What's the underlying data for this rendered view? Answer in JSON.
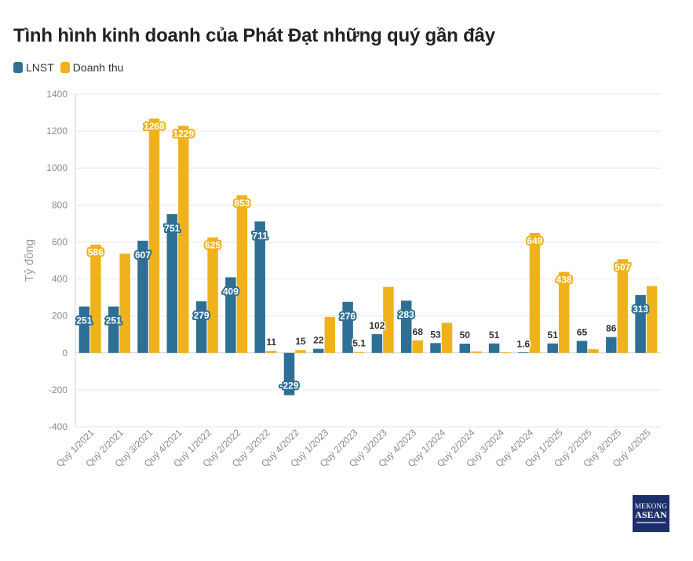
{
  "chart_data": {
    "type": "bar",
    "title": "Tình hình kinh doanh của Phát Đạt những quý gần đây",
    "ylabel": "Tỷ đồng",
    "ylim": [
      -400,
      1400
    ],
    "yticks": [
      -400,
      -200,
      0,
      200,
      400,
      600,
      800,
      1000,
      1200,
      1400
    ],
    "grid": true,
    "legend_position": "top-left",
    "categories": [
      "Quý 1/2021",
      "Quý 2/2021",
      "Quý 3/2021",
      "Quý 4/2021",
      "Quý 1/2022",
      "Quý 2/2022",
      "Quý 3/2022",
      "Quý 4/2022",
      "Quý 1/2023",
      "Quý 2/2023",
      "Quý 3/2023",
      "Quý 4/2023",
      "Quý 1/2024",
      "Quý 2/2024",
      "Quý 3/2024",
      "Quý 4/2024",
      "Quý 1/2025",
      "Quý 2/2025",
      "Quý 3/2025",
      "Quý 4/2025"
    ],
    "series": [
      {
        "name": "LNST",
        "color": "#2e6f96",
        "values": [
          251,
          251,
          607,
          751,
          279,
          409,
          711,
          -229,
          22,
          276,
          102,
          283,
          53,
          50,
          51,
          1.6,
          51,
          65,
          86,
          313
        ],
        "labels": [
          "251",
          "251",
          "607",
          "751",
          "279",
          "409",
          "711",
          "-229",
          "22",
          "276",
          "102",
          "283",
          "53",
          "50",
          "51",
          "1.6",
          "51",
          "65",
          "86",
          "313"
        ]
      },
      {
        "name": "Doanh thu",
        "color": "#f0b21c",
        "values": [
          586,
          537,
          1268,
          1229,
          625,
          853,
          11,
          15,
          195,
          5.1,
          357,
          68,
          163,
          8,
          3,
          649,
          438,
          20,
          507,
          362
        ],
        "labels": [
          "586",
          "",
          "1268",
          "1229",
          "625",
          "853",
          "11",
          "15",
          "",
          "5.1",
          "",
          "68",
          "",
          "",
          "",
          "649",
          "438",
          "",
          "507",
          ""
        ]
      }
    ]
  },
  "logo": {
    "line1": "MEKONG",
    "line2": "ASEAN"
  }
}
